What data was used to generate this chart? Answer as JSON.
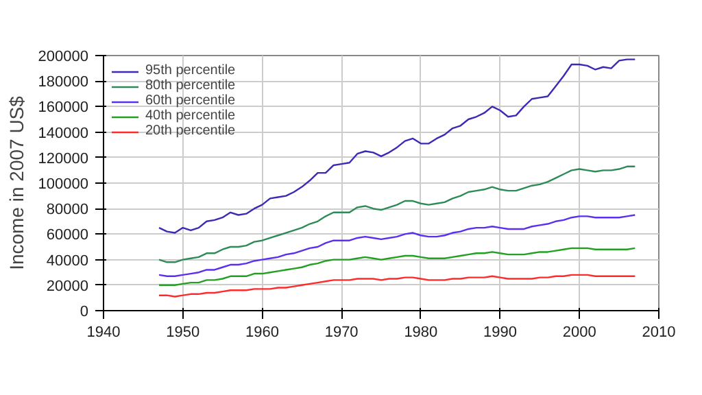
{
  "chart_data": {
    "type": "line",
    "ylabel": "Income in 2007 US$",
    "x": [
      1947,
      1948,
      1949,
      1950,
      1951,
      1952,
      1953,
      1954,
      1955,
      1956,
      1957,
      1958,
      1959,
      1960,
      1961,
      1962,
      1963,
      1964,
      1965,
      1966,
      1967,
      1968,
      1969,
      1970,
      1971,
      1972,
      1973,
      1974,
      1975,
      1976,
      1977,
      1978,
      1979,
      1980,
      1981,
      1982,
      1983,
      1984,
      1985,
      1986,
      1987,
      1988,
      1989,
      1990,
      1991,
      1992,
      1993,
      1994,
      1995,
      1996,
      1997,
      1998,
      1999,
      2000,
      2001,
      2002,
      2003,
      2004,
      2005,
      2006,
      2007
    ],
    "xlim": [
      1940,
      2010
    ],
    "xticks": [
      1940,
      1950,
      1960,
      1970,
      1980,
      1990,
      2000,
      2010
    ],
    "ylim": [
      0,
      200000
    ],
    "yticks": [
      0,
      20000,
      40000,
      60000,
      80000,
      100000,
      120000,
      140000,
      160000,
      180000,
      200000
    ],
    "grid": true,
    "legend": "top left",
    "line_style": "solid",
    "series": [
      {
        "name": "95th percentile",
        "color": "#3a2ab5",
        "values": [
          65000,
          62000,
          61000,
          65000,
          63000,
          65000,
          70000,
          71000,
          73000,
          77000,
          75000,
          76000,
          80000,
          83000,
          88000,
          89000,
          90000,
          93000,
          97000,
          102000,
          108000,
          108000,
          114000,
          115000,
          116000,
          123000,
          125000,
          124000,
          121000,
          124000,
          128000,
          133000,
          135000,
          131000,
          131000,
          135000,
          138000,
          143000,
          145000,
          150000,
          152000,
          155000,
          160000,
          157000,
          152000,
          153000,
          160000,
          166000,
          167000,
          168000,
          176000,
          184000,
          193000,
          193000,
          192000,
          189000,
          191000,
          190000,
          196000,
          197000,
          197000
        ]
      },
      {
        "name": "80th percentile",
        "color": "#2e8b57",
        "values": [
          40000,
          38000,
          38000,
          40000,
          41000,
          42000,
          45000,
          45000,
          48000,
          50000,
          50000,
          51000,
          54000,
          55000,
          57000,
          59000,
          61000,
          63000,
          65000,
          68000,
          70000,
          74000,
          77000,
          77000,
          77000,
          81000,
          82000,
          80000,
          79000,
          81000,
          83000,
          86000,
          86000,
          84000,
          83000,
          84000,
          85000,
          88000,
          90000,
          93000,
          94000,
          95000,
          97000,
          95000,
          94000,
          94000,
          96000,
          98000,
          99000,
          101000,
          104000,
          107000,
          110000,
          111000,
          110000,
          109000,
          110000,
          110000,
          111000,
          113000,
          113000
        ]
      },
      {
        "name": "60th percentile",
        "color": "#5b2ff0",
        "values": [
          28000,
          27000,
          27000,
          28000,
          29000,
          30000,
          32000,
          32000,
          34000,
          36000,
          36000,
          37000,
          39000,
          40000,
          41000,
          42000,
          44000,
          45000,
          47000,
          49000,
          50000,
          53000,
          55000,
          55000,
          55000,
          57000,
          58000,
          57000,
          56000,
          57000,
          58000,
          60000,
          61000,
          59000,
          58000,
          58000,
          59000,
          61000,
          62000,
          64000,
          65000,
          65000,
          66000,
          65000,
          64000,
          64000,
          64000,
          66000,
          67000,
          68000,
          70000,
          71000,
          73000,
          74000,
          74000,
          73000,
          73000,
          73000,
          73000,
          74000,
          75000
        ]
      },
      {
        "name": "40th percentile",
        "color": "#22a022",
        "values": [
          20000,
          20000,
          20000,
          21000,
          22000,
          22000,
          24000,
          24000,
          25000,
          27000,
          27000,
          27000,
          29000,
          29000,
          30000,
          31000,
          32000,
          33000,
          34000,
          36000,
          37000,
          39000,
          40000,
          40000,
          40000,
          41000,
          42000,
          41000,
          40000,
          41000,
          42000,
          43000,
          43000,
          42000,
          41000,
          41000,
          41000,
          42000,
          43000,
          44000,
          45000,
          45000,
          46000,
          45000,
          44000,
          44000,
          44000,
          45000,
          46000,
          46000,
          47000,
          48000,
          49000,
          49000,
          49000,
          48000,
          48000,
          48000,
          48000,
          48000,
          49000
        ]
      },
      {
        "name": "20th percentile",
        "color": "#ff2a2a",
        "values": [
          12000,
          12000,
          11000,
          12000,
          13000,
          13000,
          14000,
          14000,
          15000,
          16000,
          16000,
          16000,
          17000,
          17000,
          17000,
          18000,
          18000,
          19000,
          20000,
          21000,
          22000,
          23000,
          24000,
          24000,
          24000,
          25000,
          25000,
          25000,
          24000,
          25000,
          25000,
          26000,
          26000,
          25000,
          24000,
          24000,
          24000,
          25000,
          25000,
          26000,
          26000,
          26000,
          27000,
          26000,
          25000,
          25000,
          25000,
          25000,
          26000,
          26000,
          27000,
          27000,
          28000,
          28000,
          28000,
          27000,
          27000,
          27000,
          27000,
          27000,
          27000
        ]
      }
    ]
  }
}
